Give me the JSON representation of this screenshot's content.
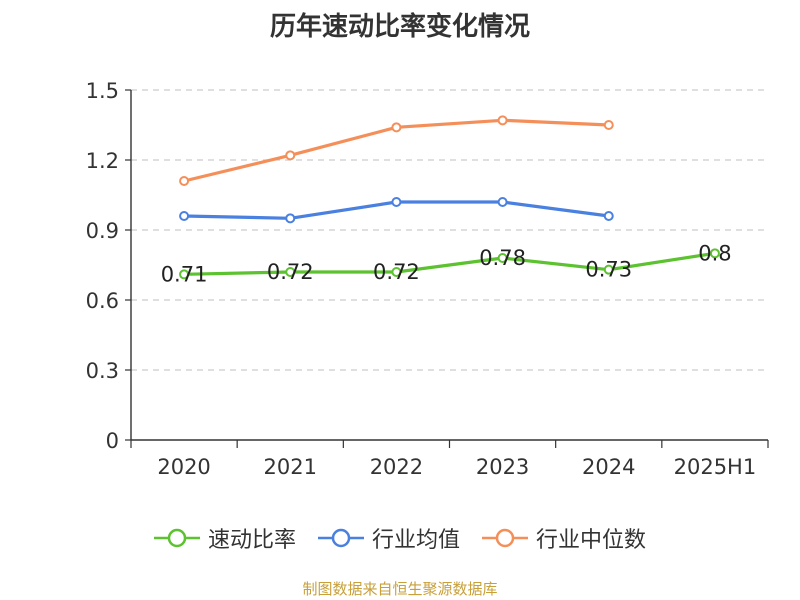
{
  "title": "历年速动比率变化情况",
  "source_note": "制图数据来自恒生聚源数据库",
  "chart_data": {
    "type": "line",
    "categories": [
      "2020",
      "2021",
      "2022",
      "2023",
      "2024",
      "2025H1"
    ],
    "ylim": [
      0,
      1.5
    ],
    "yticks": [
      "0",
      "0.3",
      "0.6",
      "0.9",
      "1.2",
      "1.5"
    ],
    "grid": true,
    "legend_position": "bottom",
    "series": [
      {
        "name": "速动比率",
        "color": "#5cc22f",
        "values": [
          0.71,
          0.72,
          0.72,
          0.78,
          0.73,
          0.8
        ],
        "labels": [
          "0.71",
          "0.72",
          "0.72",
          "0.78",
          "0.73",
          "0.8"
        ]
      },
      {
        "name": "行业均值",
        "color": "#4a80e0",
        "values": [
          0.96,
          0.95,
          1.02,
          1.02,
          0.96,
          null
        ]
      },
      {
        "name": "行业中位数",
        "color": "#f58f5a",
        "values": [
          1.11,
          1.22,
          1.34,
          1.37,
          1.35,
          null
        ]
      }
    ]
  }
}
